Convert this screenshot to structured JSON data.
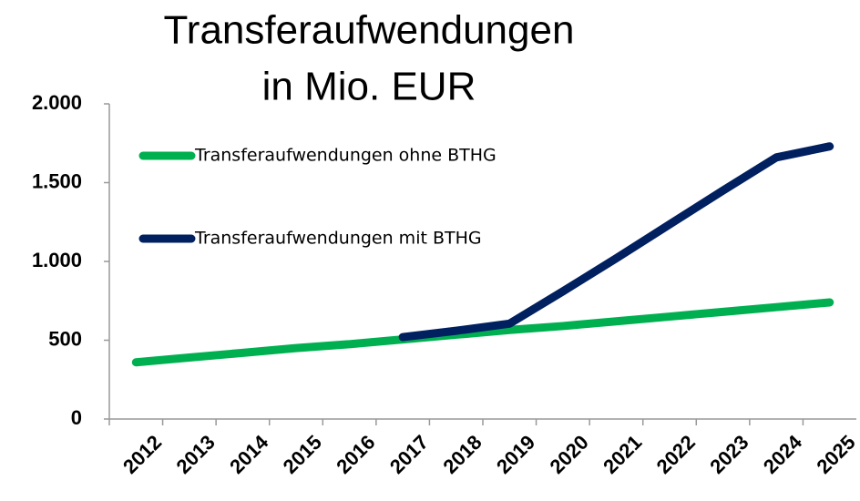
{
  "chart_data": {
    "type": "line",
    "title": [
      "Transferaufwendungen",
      "in Mio. EUR"
    ],
    "categories": [
      "2012",
      "2013",
      "2014",
      "2015",
      "2016",
      "2017",
      "2018",
      "2019",
      "2020",
      "2021",
      "2022",
      "2023",
      "2024",
      "2025"
    ],
    "series": [
      {
        "name": "Transferaufwendungen ohne BTHG",
        "color": "#00b050",
        "values": [
          360,
          390,
          420,
          450,
          475,
          505,
          535,
          565,
          590,
          620,
          650,
          680,
          710,
          740
        ]
      },
      {
        "name": "Transferaufwendungen mit BTHG",
        "color": "#002060",
        "values": [
          null,
          null,
          null,
          null,
          null,
          520,
          560,
          605,
          810,
          1020,
          1235,
          1450,
          1660,
          1730
        ]
      }
    ],
    "ylim": [
      0,
      2000
    ],
    "yticks": [
      0,
      500,
      {
        "value": 1000,
        "label": "1.000"
      },
      {
        "value": 1500,
        "label": "1.500"
      },
      {
        "value": 2000,
        "label": "2.000"
      }
    ],
    "grid": false,
    "legend": "top-left"
  }
}
